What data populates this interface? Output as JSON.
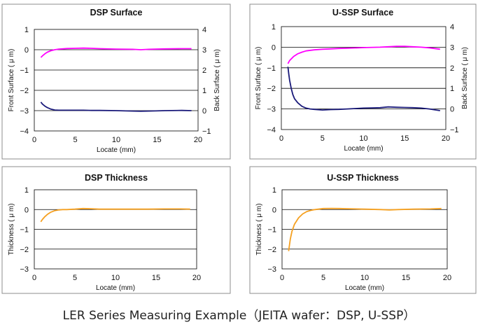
{
  "caption": "LER Series  Measuring Example（JEITA wafer：DSP, U-SSP）",
  "colors": {
    "front": "#ff00ff",
    "back": "#1a1a7a",
    "thickness": "#f5a020",
    "grid": "#000000",
    "plot_bg": "#ffffff",
    "frame": "#8c8c8c"
  },
  "chart_data": [
    {
      "type": "line",
      "title": "DSP Surface",
      "xlabel": "Locate (mm)",
      "ylabel": "Front Surface ( μ m)",
      "y2label": "Back Surface ( μ m)",
      "xlim": [
        0,
        20
      ],
      "ylim": [
        -4,
        1
      ],
      "y2lim": [
        -1,
        4
      ],
      "xticks": [
        "0",
        "5",
        "10",
        "15",
        "20"
      ],
      "yticks": [
        "1",
        "0",
        "−1",
        "−2",
        "−3",
        "−4"
      ],
      "y2ticks": [
        "4",
        "3",
        "2",
        "1",
        "0",
        "−1"
      ],
      "grid": true,
      "series": [
        {
          "key": "front",
          "axis": "left",
          "x": [
            0.8,
            1.0,
            1.3,
            1.6,
            2.0,
            2.5,
            3.0,
            4,
            5,
            6,
            7,
            8,
            10,
            12,
            13,
            14,
            16,
            18,
            19.2
          ],
          "y": [
            -0.38,
            -0.3,
            -0.2,
            -0.12,
            -0.05,
            0.0,
            0.03,
            0.06,
            0.07,
            0.08,
            0.07,
            0.05,
            0.03,
            0.02,
            0.0,
            0.02,
            0.04,
            0.05,
            0.05
          ]
        },
        {
          "key": "back",
          "axis": "right",
          "x": [
            0.8,
            1.0,
            1.3,
            1.6,
            2.0,
            2.5,
            3.0,
            4,
            5,
            6,
            7,
            8,
            10,
            12,
            13,
            14,
            16,
            18,
            19.2
          ],
          "y": [
            0.42,
            0.32,
            0.22,
            0.15,
            0.08,
            0.03,
            0.02,
            0.02,
            0.02,
            0.02,
            0.01,
            0.01,
            0.0,
            -0.02,
            -0.03,
            -0.02,
            0.0,
            0.01,
            0.0
          ]
        }
      ]
    },
    {
      "type": "line",
      "title": "U-SSP Surface",
      "xlabel": "Locate (mm)",
      "ylabel": "Front Surface ( μ m)",
      "y2label": "Back Surface ( μ m)",
      "xlim": [
        0,
        20
      ],
      "ylim": [
        -4,
        1
      ],
      "y2lim": [
        -1,
        4
      ],
      "xticks": [
        "0",
        "5",
        "10",
        "15",
        "20"
      ],
      "yticks": [
        "1",
        "0",
        "−1",
        "−2",
        "−3",
        "−4"
      ],
      "y2ticks": [
        "4",
        "3",
        "2",
        "1",
        "0",
        "−1"
      ],
      "grid": true,
      "series": [
        {
          "key": "front",
          "axis": "left",
          "x": [
            0.8,
            1.0,
            1.5,
            2.0,
            2.5,
            3.0,
            4,
            5,
            6,
            7,
            8,
            10,
            12,
            13,
            14,
            15,
            16,
            17,
            18,
            19.3
          ],
          "y": [
            -0.8,
            -0.65,
            -0.45,
            -0.32,
            -0.24,
            -0.18,
            -0.13,
            -0.1,
            -0.08,
            -0.06,
            -0.05,
            -0.02,
            0.0,
            0.02,
            0.04,
            0.04,
            0.02,
            0.0,
            -0.03,
            -0.1
          ]
        },
        {
          "key": "back",
          "axis": "right",
          "x": [
            0.8,
            0.9,
            1.0,
            1.2,
            1.4,
            1.6,
            2.0,
            2.5,
            3.0,
            3.5,
            4,
            5,
            6,
            7,
            8,
            9,
            10,
            11,
            12,
            13,
            14,
            15,
            16,
            17,
            18,
            19.3
          ],
          "y": [
            2.05,
            1.7,
            1.4,
            1.0,
            0.7,
            0.5,
            0.3,
            0.13,
            0.04,
            0.0,
            -0.02,
            -0.05,
            -0.03,
            -0.02,
            0.0,
            0.02,
            0.04,
            0.05,
            0.06,
            0.1,
            0.08,
            0.07,
            0.06,
            0.04,
            0.0,
            -0.08
          ]
        }
      ]
    },
    {
      "type": "line",
      "title": "DSP Thickness",
      "xlabel": "Locate (mm)",
      "ylabel": "Thickness ( μ m)",
      "xlim": [
        0,
        20
      ],
      "ylim": [
        -3,
        1
      ],
      "xticks": [
        "0",
        "5",
        "10",
        "15",
        "20"
      ],
      "yticks": [
        "1",
        "0",
        "−1",
        "−2",
        "−3"
      ],
      "grid": true,
      "series": [
        {
          "key": "thickness",
          "axis": "left",
          "x": [
            0.8,
            1.0,
            1.3,
            1.6,
            2.0,
            2.5,
            3.0,
            3.5,
            4,
            5,
            6,
            7,
            8,
            10,
            12,
            14,
            16,
            18,
            19.2
          ],
          "y": [
            -0.62,
            -0.5,
            -0.36,
            -0.25,
            -0.14,
            -0.06,
            -0.02,
            0.0,
            0.0,
            0.02,
            0.05,
            0.04,
            0.02,
            0.02,
            0.02,
            0.02,
            0.03,
            0.03,
            0.02
          ]
        }
      ]
    },
    {
      "type": "line",
      "title": "U-SSP Thickness",
      "xlabel": "Locate (mm)",
      "ylabel": "Thickness ( μ m)",
      "xlim": [
        0,
        20
      ],
      "ylim": [
        -3,
        1
      ],
      "xticks": [
        "0",
        "5",
        "10",
        "15",
        "20"
      ],
      "yticks": [
        "1",
        "0",
        "−1",
        "−2",
        "−3"
      ],
      "grid": true,
      "series": [
        {
          "key": "thickness",
          "axis": "left",
          "x": [
            0.8,
            0.9,
            1.0,
            1.2,
            1.5,
            2.0,
            2.5,
            3.0,
            3.5,
            4,
            5,
            6,
            7,
            8,
            10,
            12,
            13,
            14,
            16,
            18,
            19.3
          ],
          "y": [
            -2.1,
            -1.8,
            -1.5,
            -1.1,
            -0.75,
            -0.42,
            -0.22,
            -0.1,
            -0.04,
            0.0,
            0.05,
            0.06,
            0.05,
            0.04,
            0.02,
            0.0,
            -0.02,
            0.0,
            0.02,
            0.03,
            0.05
          ]
        }
      ]
    }
  ]
}
